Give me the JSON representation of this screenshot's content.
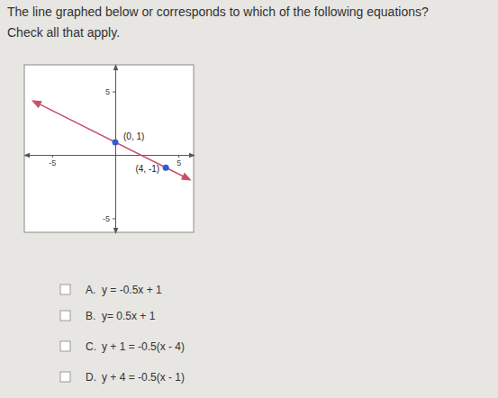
{
  "question": "The line graphed below or corresponds to which of the following equations?",
  "instruction": "Check all that apply.",
  "chart_data": {
    "type": "line",
    "xlim": [
      -7.2,
      6.2
    ],
    "ylim": [
      -6.1,
      7.1
    ],
    "xticks": [
      -5,
      5
    ],
    "yticks": [
      -5,
      5
    ],
    "series": [
      {
        "type": "line",
        "color": "#c9506c",
        "line_style": "solid",
        "x": [
          -6.5,
          5.9
        ],
        "values": [
          4.25,
          -1.95
        ]
      },
      {
        "type": "scatter",
        "color": "#2c5fd6",
        "marker": "circle",
        "x": [
          0,
          4
        ],
        "values": [
          1,
          -1
        ],
        "value_labels": [
          "(0, 1)",
          "(4, -1)"
        ]
      }
    ]
  },
  "choices": [
    {
      "letter": "A.",
      "equation": "y = -0.5x + 1"
    },
    {
      "letter": "B.",
      "equation": "y= 0.5x + 1"
    },
    {
      "letter": "C.",
      "equation": "y + 1 = -0.5(x - 4)"
    },
    {
      "letter": "D.",
      "equation": "y + 4 = -0.5(x - 1)"
    }
  ]
}
